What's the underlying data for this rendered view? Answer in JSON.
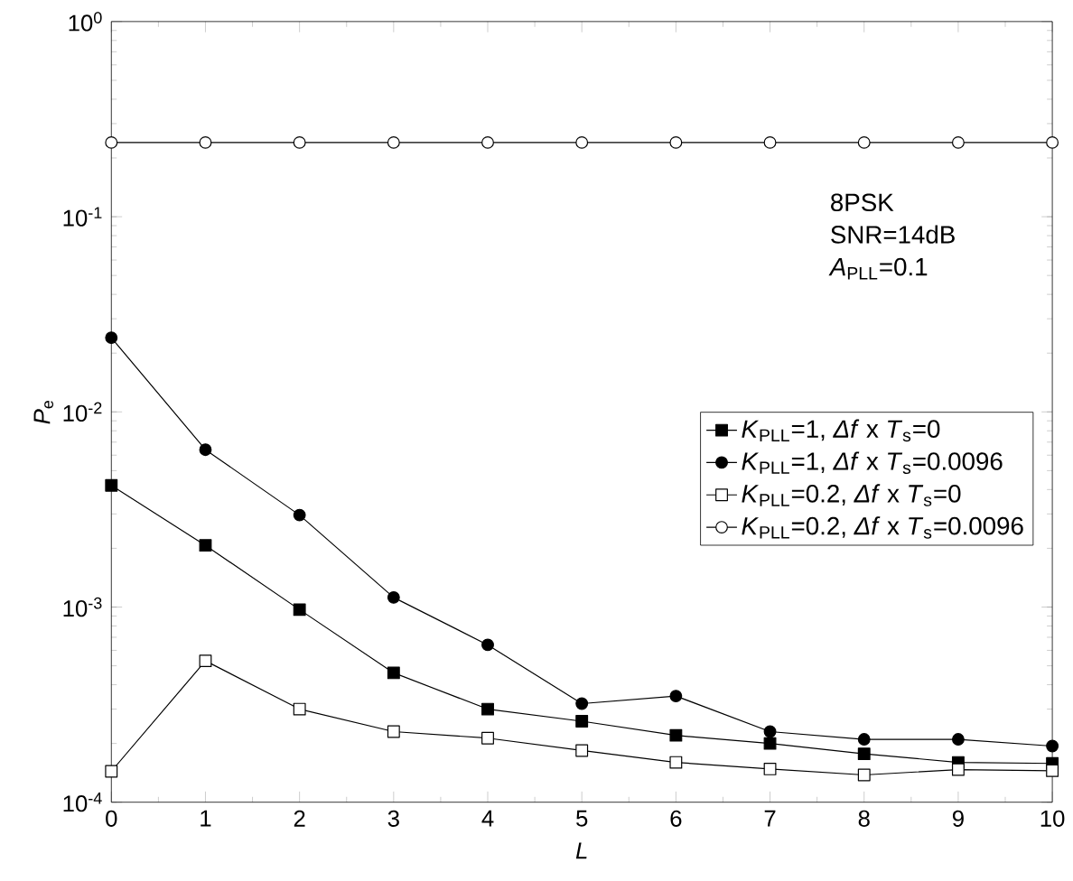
{
  "chart_data": {
    "type": "line",
    "xlabel": "*L*",
    "ylabel": "*P*$_{e}$",
    "log": "y",
    "xlim": [
      0,
      10
    ],
    "ylim": [
      0.0001,
      1
    ],
    "xticks": [
      0,
      1,
      2,
      3,
      4,
      5,
      6,
      7,
      8,
      9,
      10
    ],
    "yticks": [
      {
        "value": 0.0001,
        "label": "10$^{-4}$"
      },
      {
        "value": 0.001,
        "label": "10$^{-3}$"
      },
      {
        "value": 0.01,
        "label": "10$^{-2}$"
      },
      {
        "value": 0.1,
        "label": "10$^{-1}$"
      },
      {
        "value": 1,
        "label": "10$^{0}$"
      }
    ],
    "x": [
      0,
      1,
      2,
      3,
      4,
      5,
      6,
      7,
      8,
      9,
      10
    ],
    "grid": false,
    "legend": "right",
    "line_style": "solid",
    "annotations": [
      "8PSK",
      "SNR=14dB",
      "*A*$_{PLL}$=0.1"
    ],
    "series": [
      {
        "name": "*K*$_{PLL}$=1, *Δf* x *T*$_{s}$=0",
        "color": "#000000",
        "marker": "square",
        "values": [
          0.0042,
          0.00207,
          0.00097,
          0.00046,
          0.0003,
          0.00026,
          0.00022,
          0.0002,
          0.000177,
          0.00016,
          0.000158
        ]
      },
      {
        "name": "*K*$_{PLL}$=1, *Δf* x *T*$_{s}$=0.0096",
        "color": "#000000",
        "marker": "circle",
        "values": [
          0.024,
          0.0064,
          0.00296,
          0.00112,
          0.00064,
          0.00032,
          0.00035,
          0.00023,
          0.00021,
          0.00021,
          0.000194
        ]
      },
      {
        "name": "*K*$_{PLL}$=0.2, *Δf* x *T*$_{s}$=0",
        "color": "#ffffff",
        "marker": "square",
        "values": [
          0.000144,
          0.00053,
          0.0003,
          0.00023,
          0.000213,
          0.000184,
          0.00016,
          0.000148,
          0.000138,
          0.000147,
          0.000145
        ]
      },
      {
        "name": "*K*$_{PLL}$=0.2, *Δf* x *T*$_{s}$=0.0096",
        "color": "#ffffff",
        "marker": "circle",
        "values": [
          0.24,
          0.24,
          0.24,
          0.24,
          0.24,
          0.24,
          0.24,
          0.24,
          0.24,
          0.24,
          0.24
        ]
      }
    ]
  }
}
